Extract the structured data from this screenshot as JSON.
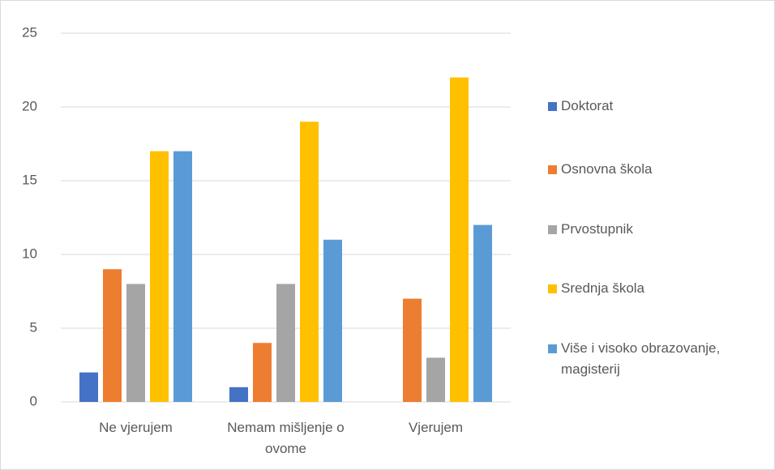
{
  "chart_data": {
    "type": "bar",
    "categories": [
      "Ne vjerujem",
      "Nemam mišljenje o ovome",
      "Vjerujem"
    ],
    "series": [
      {
        "name": "Doktorat",
        "color": "#4472c4",
        "values": [
          2,
          1,
          0
        ]
      },
      {
        "name": "Osnovna škola",
        "color": "#ed7d31",
        "values": [
          9,
          4,
          7
        ]
      },
      {
        "name": "Prvostupnik",
        "color": "#a5a5a5",
        "values": [
          8,
          8,
          3
        ]
      },
      {
        "name": "Srednja škola",
        "color": "#ffc000",
        "values": [
          17,
          19,
          22
        ]
      },
      {
        "name": "Više i visoko obrazovanje, magisterij",
        "color": "#5b9bd5",
        "values": [
          17,
          11,
          12
        ]
      }
    ],
    "ylim": [
      0,
      25
    ],
    "yticks": [
      0,
      5,
      10,
      15,
      20,
      25
    ],
    "grid": true,
    "legend": "right"
  }
}
